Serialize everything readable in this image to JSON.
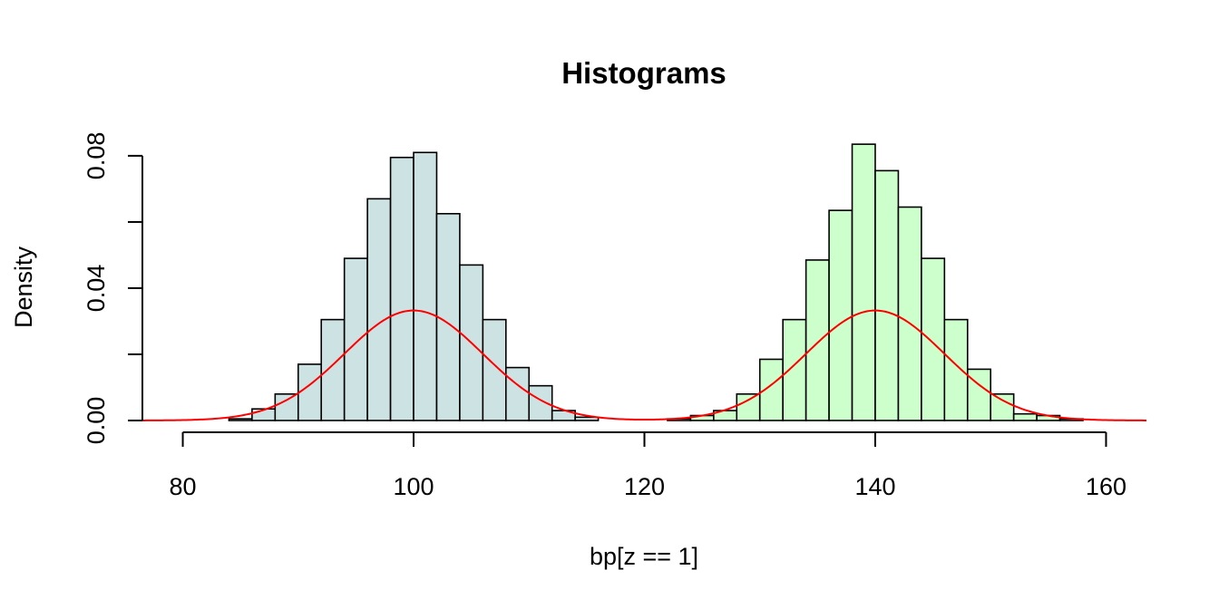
{
  "chart_data": {
    "type": "bar",
    "title": "Histograms",
    "xlabel": "bp[z == 1]",
    "ylabel": "Density",
    "xlim": [
      76.5,
      163.5
    ],
    "ylim": [
      0,
      0.086
    ],
    "x_ticks": [
      80,
      100,
      120,
      140,
      160
    ],
    "x_tick_labels": [
      "80",
      "100",
      "120",
      "140",
      "160"
    ],
    "y_ticks": [
      0.0,
      0.02,
      0.04,
      0.06,
      0.08
    ],
    "y_tick_labels": [
      "0.00",
      "0.04",
      "0.08"
    ],
    "bin_width": 2,
    "series": [
      {
        "fill": "#cde3e3",
        "bins_start": [
          84,
          86,
          88,
          90,
          92,
          94,
          96,
          98,
          100,
          102,
          104,
          106,
          108,
          110,
          112,
          114
        ],
        "values": [
          0.0005,
          0.0035,
          0.008,
          0.017,
          0.0305,
          0.049,
          0.067,
          0.0795,
          0.081,
          0.0625,
          0.047,
          0.0305,
          0.016,
          0.0105,
          0.003,
          0.001
        ]
      },
      {
        "fill": "#ccffcc",
        "bins_start": [
          122,
          124,
          126,
          128,
          130,
          132,
          134,
          136,
          138,
          140,
          142,
          144,
          146,
          148,
          150,
          152,
          154,
          156
        ],
        "values": [
          0.0005,
          0.0015,
          0.003,
          0.008,
          0.0185,
          0.0305,
          0.0485,
          0.0635,
          0.0835,
          0.0755,
          0.0645,
          0.049,
          0.0305,
          0.0155,
          0.008,
          0.002,
          0.0015,
          0.0005
        ]
      }
    ],
    "density_curve": {
      "color": "#ff0000",
      "components": [
        {
          "mean": 100,
          "sd": 6,
          "weight": 0.5
        },
        {
          "mean": 140,
          "sd": 6,
          "weight": 0.5
        }
      ]
    }
  }
}
